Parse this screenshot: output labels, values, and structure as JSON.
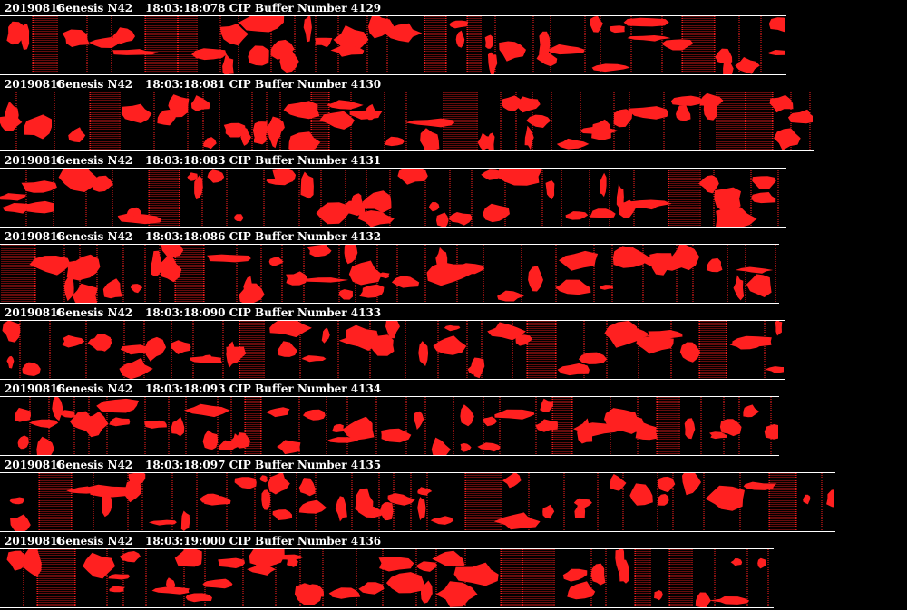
{
  "colors": {
    "background": "#000000",
    "particle": "#ff2020",
    "text": "#ffffff"
  },
  "buffers": [
    {
      "date": "20190816",
      "probe": "Genesis N42",
      "time": "18:03:18:078",
      "buffer_label": "CIP Buffer Number 4129"
    },
    {
      "date": "20190816",
      "probe": "Genesis N42",
      "time": "18:03:18:081",
      "buffer_label": "CIP Buffer Number 4130"
    },
    {
      "date": "20190816",
      "probe": "Genesis N42",
      "time": "18:03:18:083",
      "buffer_label": "CIP Buffer Number 4131"
    },
    {
      "date": "20190816",
      "probe": "Genesis N42",
      "time": "18:03:18:086",
      "buffer_label": "CIP Buffer Number 4132"
    },
    {
      "date": "20190816",
      "probe": "Genesis N42",
      "time": "18:03:18:090",
      "buffer_label": "CIP Buffer Number 4133"
    },
    {
      "date": "20190816",
      "probe": "Genesis N42",
      "time": "18:03:18:093",
      "buffer_label": "CIP Buffer Number 4134"
    },
    {
      "date": "20190816",
      "probe": "Genesis N42",
      "time": "18:03:18:097",
      "buffer_label": "CIP Buffer Number 4135"
    },
    {
      "date": "20190816",
      "probe": "Genesis N42",
      "time": "18:03:19:000",
      "buffer_label": "CIP Buffer Number 4136"
    }
  ]
}
